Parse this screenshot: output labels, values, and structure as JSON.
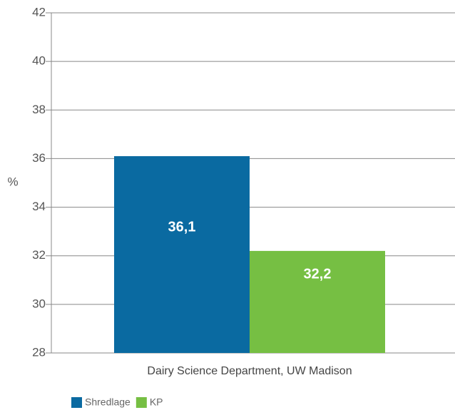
{
  "chart_data": {
    "type": "bar",
    "y_label": "%",
    "categories": [
      "Dairy Science Department, UW Madison"
    ],
    "series": [
      {
        "name": "Shredlage",
        "color": "#0a6aa1",
        "values": [
          36.1
        ],
        "value_labels": [
          "36,1"
        ]
      },
      {
        "name": "KP",
        "color": "#76bf43",
        "values": [
          32.2
        ],
        "value_labels": [
          "32,2"
        ]
      }
    ],
    "ylim": [
      28,
      42
    ],
    "yticks": [
      28,
      30,
      32,
      34,
      36,
      38,
      40,
      42
    ],
    "grid": true,
    "legend": "bottom-left"
  }
}
